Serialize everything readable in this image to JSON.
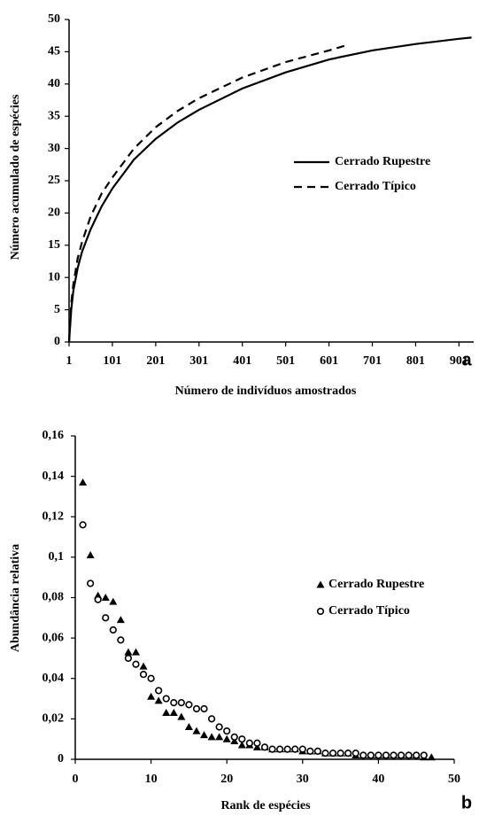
{
  "chart_data": [
    {
      "type": "line",
      "panel_label": "a",
      "xlabel": "Número de indivíduos amostrados",
      "ylabel": "Número acumulado de espécies",
      "xlim": [
        1,
        935
      ],
      "xticks": [
        1,
        101,
        201,
        301,
        401,
        501,
        601,
        701,
        801,
        901
      ],
      "ylim": [
        0,
        50
      ],
      "yticks": [
        0,
        5,
        10,
        15,
        20,
        25,
        30,
        35,
        40,
        45,
        50
      ],
      "legend": "right",
      "grid": false,
      "series": [
        {
          "name": "Cerrado Rupestre",
          "color": "#000000",
          "style": "solid",
          "x": [
            1,
            6,
            11,
            21,
            31,
            51,
            76,
            101,
            151,
            201,
            251,
            301,
            401,
            501,
            601,
            701,
            801,
            901,
            930
          ],
          "values": [
            0,
            5,
            8,
            11.5,
            14,
            17.5,
            21,
            23.8,
            28.3,
            31.5,
            34,
            36,
            39.3,
            41.8,
            43.8,
            45.2,
            46.2,
            47,
            47.2
          ]
        },
        {
          "name": "Cerrado Típico",
          "color": "#000000",
          "style": "dash",
          "x": [
            1,
            6,
            11,
            21,
            31,
            51,
            76,
            101,
            151,
            201,
            251,
            301,
            401,
            501,
            601,
            641
          ],
          "values": [
            0,
            6,
            9,
            13,
            15.5,
            19.5,
            23,
            25.5,
            30,
            33.3,
            35.8,
            37.8,
            41,
            43.4,
            45.2,
            46
          ]
        }
      ]
    },
    {
      "type": "scatter",
      "panel_label": "b",
      "xlabel": "Rank de espécies",
      "ylabel": "Abundância relativa",
      "xlim": [
        0,
        50
      ],
      "xticks": [
        0,
        10,
        20,
        30,
        40,
        50
      ],
      "ylim": [
        0,
        0.16
      ],
      "yticks": [
        0,
        {
          "value": 0.02,
          "label": "0,02"
        },
        {
          "value": 0.04,
          "label": "0,04"
        },
        {
          "value": 0.06,
          "label": "0,06"
        },
        {
          "value": 0.08,
          "label": "0,08"
        },
        {
          "value": 0.1,
          "label": "0,1"
        },
        {
          "value": 0.12,
          "label": "0,12"
        },
        {
          "value": 0.14,
          "label": "0,14"
        },
        {
          "value": 0.16,
          "label": "0,16"
        }
      ],
      "legend": "right",
      "grid": false,
      "series": [
        {
          "name": "Cerrado Rupestre",
          "color": "#000000",
          "marker": "triangle",
          "x": [
            1,
            2,
            3,
            4,
            5,
            6,
            7,
            8,
            9,
            10,
            11,
            12,
            13,
            14,
            15,
            16,
            17,
            18,
            19,
            20,
            21,
            22,
            23,
            24,
            25,
            26,
            27,
            28,
            29,
            30,
            31,
            32,
            33,
            34,
            35,
            36,
            37,
            38,
            39,
            40,
            41,
            42,
            43,
            44,
            45,
            46,
            47
          ],
          "values": [
            0.137,
            0.101,
            0.081,
            0.08,
            0.078,
            0.069,
            0.053,
            0.053,
            0.046,
            0.031,
            0.029,
            0.023,
            0.023,
            0.021,
            0.016,
            0.014,
            0.012,
            0.011,
            0.011,
            0.01,
            0.009,
            0.007,
            0.007,
            0.006,
            0.006,
            0.005,
            0.005,
            0.005,
            0.005,
            0.004,
            0.004,
            0.004,
            0.003,
            0.003,
            0.003,
            0.003,
            0.002,
            0.002,
            0.002,
            0.002,
            0.002,
            0.002,
            0.002,
            0.002,
            0.002,
            0.001,
            0.001
          ]
        },
        {
          "name": "Cerrado Típico",
          "color": "#000000",
          "marker": "circle-open",
          "x": [
            1,
            2,
            3,
            4,
            5,
            6,
            7,
            8,
            9,
            10,
            11,
            12,
            13,
            14,
            15,
            16,
            17,
            18,
            19,
            20,
            21,
            22,
            23,
            24,
            25,
            26,
            27,
            28,
            29,
            30,
            31,
            32,
            33,
            34,
            35,
            36,
            37,
            38,
            39,
            40,
            41,
            42,
            43,
            44,
            45,
            46
          ],
          "values": [
            0.116,
            0.087,
            0.079,
            0.07,
            0.064,
            0.059,
            0.05,
            0.047,
            0.042,
            0.04,
            0.034,
            0.03,
            0.028,
            0.028,
            0.027,
            0.025,
            0.025,
            0.02,
            0.016,
            0.014,
            0.011,
            0.01,
            0.008,
            0.008,
            0.006,
            0.005,
            0.005,
            0.005,
            0.005,
            0.005,
            0.004,
            0.004,
            0.003,
            0.003,
            0.003,
            0.003,
            0.003,
            0.002,
            0.002,
            0.002,
            0.002,
            0.002,
            0.002,
            0.002,
            0.002,
            0.002
          ]
        }
      ]
    }
  ]
}
